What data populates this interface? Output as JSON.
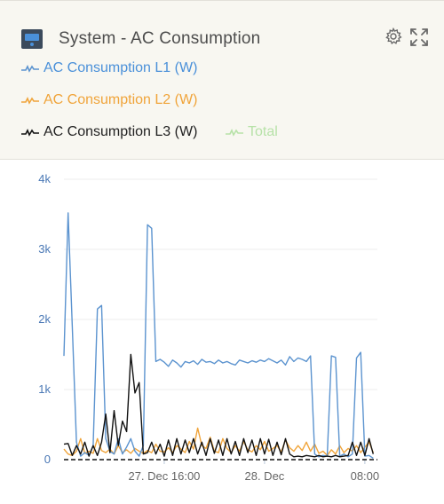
{
  "panel": {
    "title": "System - AC Consumption",
    "settings_icon": "gear-icon",
    "expand_icon": "expand-icon",
    "device_icon": "inverter-icon"
  },
  "chart_data": {
    "type": "line",
    "title": "System - AC Consumption",
    "xlabel": "",
    "ylabel": "",
    "ylim": [
      0,
      4000
    ],
    "yticks": [
      0,
      1000,
      2000,
      3000,
      4000
    ],
    "ytick_labels": [
      "0",
      "1k",
      "2k",
      "3k",
      "4k"
    ],
    "xlim": [
      "2023-12-27T08:00",
      "2023-12-28T09:00"
    ],
    "xtick_labels": [
      {
        "label": "27. Dec 16:00",
        "t": "2023-12-27T16:00"
      },
      {
        "label": "28. Dec",
        "t": "2023-12-28T00:00"
      },
      {
        "label": "08:00",
        "t": "2023-12-28T08:00"
      }
    ],
    "grid": true,
    "legend_position": "top-left",
    "series": [
      {
        "name": "AC Consumption L1 (W)",
        "color": "#5b93cf",
        "points": [
          [
            "2023-12-27T08:00",
            1480
          ],
          [
            "2023-12-27T08:20",
            3520
          ],
          [
            "2023-12-27T08:40",
            1900
          ],
          [
            "2023-12-27T09:00",
            250
          ],
          [
            "2023-12-27T09:20",
            50
          ],
          [
            "2023-12-27T09:40",
            100
          ],
          [
            "2023-12-27T10:00",
            60
          ],
          [
            "2023-12-27T10:20",
            200
          ],
          [
            "2023-12-27T10:40",
            2150
          ],
          [
            "2023-12-27T11:00",
            2200
          ],
          [
            "2023-12-27T11:20",
            300
          ],
          [
            "2023-12-27T11:40",
            120
          ],
          [
            "2023-12-27T12:00",
            80
          ],
          [
            "2023-12-27T12:20",
            300
          ],
          [
            "2023-12-27T12:40",
            80
          ],
          [
            "2023-12-27T13:00",
            180
          ],
          [
            "2023-12-27T13:20",
            300
          ],
          [
            "2023-12-27T13:40",
            120
          ],
          [
            "2023-12-27T14:00",
            50
          ],
          [
            "2023-12-27T14:20",
            200
          ],
          [
            "2023-12-27T14:40",
            3350
          ],
          [
            "2023-12-27T15:00",
            3300
          ],
          [
            "2023-12-27T15:20",
            1400
          ],
          [
            "2023-12-27T15:40",
            1430
          ],
          [
            "2023-12-27T16:00",
            1390
          ],
          [
            "2023-12-27T16:20",
            1330
          ],
          [
            "2023-12-27T16:40",
            1420
          ],
          [
            "2023-12-27T17:00",
            1380
          ],
          [
            "2023-12-27T17:20",
            1320
          ],
          [
            "2023-12-27T17:40",
            1400
          ],
          [
            "2023-12-27T18:00",
            1380
          ],
          [
            "2023-12-27T18:20",
            1410
          ],
          [
            "2023-12-27T18:40",
            1360
          ],
          [
            "2023-12-27T19:00",
            1430
          ],
          [
            "2023-12-27T19:20",
            1390
          ],
          [
            "2023-12-27T19:40",
            1400
          ],
          [
            "2023-12-27T20:00",
            1370
          ],
          [
            "2023-12-27T20:20",
            1420
          ],
          [
            "2023-12-27T20:40",
            1380
          ],
          [
            "2023-12-27T21:00",
            1400
          ],
          [
            "2023-12-27T21:20",
            1370
          ],
          [
            "2023-12-27T21:40",
            1350
          ],
          [
            "2023-12-27T22:00",
            1420
          ],
          [
            "2023-12-27T22:20",
            1400
          ],
          [
            "2023-12-27T22:40",
            1380
          ],
          [
            "2023-12-27T23:00",
            1410
          ],
          [
            "2023-12-27T23:20",
            1390
          ],
          [
            "2023-12-27T23:40",
            1420
          ],
          [
            "2023-12-28T00:00",
            1400
          ],
          [
            "2023-12-28T00:20",
            1440
          ],
          [
            "2023-12-28T00:40",
            1410
          ],
          [
            "2023-12-28T01:00",
            1380
          ],
          [
            "2023-12-28T01:20",
            1420
          ],
          [
            "2023-12-28T01:40",
            1350
          ],
          [
            "2023-12-28T02:00",
            1470
          ],
          [
            "2023-12-28T02:20",
            1400
          ],
          [
            "2023-12-28T02:40",
            1450
          ],
          [
            "2023-12-28T03:00",
            1430
          ],
          [
            "2023-12-28T03:20",
            1400
          ],
          [
            "2023-12-28T03:40",
            1480
          ],
          [
            "2023-12-28T04:00",
            80
          ],
          [
            "2023-12-28T04:20",
            40
          ],
          [
            "2023-12-28T04:40",
            60
          ],
          [
            "2023-12-28T05:00",
            50
          ],
          [
            "2023-12-28T05:20",
            1480
          ],
          [
            "2023-12-28T05:40",
            1460
          ],
          [
            "2023-12-28T06:00",
            50
          ],
          [
            "2023-12-28T06:20",
            80
          ],
          [
            "2023-12-28T06:40",
            40
          ],
          [
            "2023-12-28T07:00",
            80
          ],
          [
            "2023-12-28T07:20",
            1450
          ],
          [
            "2023-12-28T07:40",
            1530
          ],
          [
            "2023-12-28T08:00",
            50
          ],
          [
            "2023-12-28T08:20",
            60
          ],
          [
            "2023-12-28T08:40",
            20
          ]
        ]
      },
      {
        "name": "AC Consumption L2 (W)",
        "color": "#f0a43a",
        "points": [
          [
            "2023-12-27T08:00",
            150
          ],
          [
            "2023-12-27T08:20",
            80
          ],
          [
            "2023-12-27T08:40",
            60
          ],
          [
            "2023-12-27T09:00",
            120
          ],
          [
            "2023-12-27T09:20",
            300
          ],
          [
            "2023-12-27T09:40",
            90
          ],
          [
            "2023-12-27T10:00",
            120
          ],
          [
            "2023-12-27T10:20",
            90
          ],
          [
            "2023-12-27T10:40",
            300
          ],
          [
            "2023-12-27T11:00",
            130
          ],
          [
            "2023-12-27T11:20",
            100
          ],
          [
            "2023-12-27T11:40",
            150
          ],
          [
            "2023-12-27T12:00",
            80
          ],
          [
            "2023-12-27T12:20",
            200
          ],
          [
            "2023-12-27T12:40",
            100
          ],
          [
            "2023-12-27T13:00",
            140
          ],
          [
            "2023-12-27T13:20",
            90
          ],
          [
            "2023-12-27T13:40",
            160
          ],
          [
            "2023-12-27T14:00",
            120
          ],
          [
            "2023-12-27T14:20",
            90
          ],
          [
            "2023-12-27T14:40",
            130
          ],
          [
            "2023-12-27T15:00",
            100
          ],
          [
            "2023-12-27T15:20",
            220
          ],
          [
            "2023-12-27T15:40",
            120
          ],
          [
            "2023-12-27T16:00",
            110
          ],
          [
            "2023-12-27T16:20",
            170
          ],
          [
            "2023-12-27T16:40",
            100
          ],
          [
            "2023-12-27T17:00",
            200
          ],
          [
            "2023-12-27T17:20",
            150
          ],
          [
            "2023-12-27T17:40",
            100
          ],
          [
            "2023-12-27T18:00",
            260
          ],
          [
            "2023-12-27T18:20",
            150
          ],
          [
            "2023-12-27T18:40",
            450
          ],
          [
            "2023-12-27T19:00",
            200
          ],
          [
            "2023-12-27T19:20",
            160
          ],
          [
            "2023-12-27T19:40",
            320
          ],
          [
            "2023-12-27T20:00",
            120
          ],
          [
            "2023-12-27T20:20",
            100
          ],
          [
            "2023-12-27T20:40",
            300
          ],
          [
            "2023-12-27T21:00",
            160
          ],
          [
            "2023-12-27T21:20",
            100
          ],
          [
            "2023-12-27T21:40",
            200
          ],
          [
            "2023-12-27T22:00",
            120
          ],
          [
            "2023-12-27T22:20",
            260
          ],
          [
            "2023-12-27T22:40",
            140
          ],
          [
            "2023-12-27T23:00",
            110
          ],
          [
            "2023-12-27T23:20",
            200
          ],
          [
            "2023-12-27T23:40",
            140
          ],
          [
            "2023-12-28T00:00",
            260
          ],
          [
            "2023-12-28T00:20",
            120
          ],
          [
            "2023-12-28T00:40",
            160
          ],
          [
            "2023-12-28T01:00",
            200
          ],
          [
            "2023-12-28T01:20",
            110
          ],
          [
            "2023-12-28T01:40",
            280
          ],
          [
            "2023-12-28T02:00",
            170
          ],
          [
            "2023-12-28T02:20",
            120
          ],
          [
            "2023-12-28T02:40",
            200
          ],
          [
            "2023-12-28T03:00",
            130
          ],
          [
            "2023-12-28T03:20",
            250
          ],
          [
            "2023-12-28T03:40",
            120
          ],
          [
            "2023-12-28T04:00",
            220
          ],
          [
            "2023-12-28T04:20",
            90
          ],
          [
            "2023-12-28T04:40",
            120
          ],
          [
            "2023-12-28T05:00",
            60
          ],
          [
            "2023-12-28T05:20",
            140
          ],
          [
            "2023-12-28T05:40",
            80
          ],
          [
            "2023-12-28T06:00",
            200
          ],
          [
            "2023-12-28T06:20",
            100
          ],
          [
            "2023-12-28T06:40",
            160
          ],
          [
            "2023-12-28T07:00",
            120
          ],
          [
            "2023-12-28T07:20",
            200
          ],
          [
            "2023-12-28T07:40",
            100
          ],
          [
            "2023-12-28T08:00",
            180
          ],
          [
            "2023-12-28T08:20",
            250
          ],
          [
            "2023-12-28T08:40",
            100
          ]
        ]
      },
      {
        "name": "AC Consumption L3 (W)",
        "color": "#111111",
        "points": [
          [
            "2023-12-27T08:00",
            220
          ],
          [
            "2023-12-27T08:20",
            230
          ],
          [
            "2023-12-27T08:40",
            60
          ],
          [
            "2023-12-27T09:00",
            200
          ],
          [
            "2023-12-27T09:20",
            80
          ],
          [
            "2023-12-27T09:40",
            250
          ],
          [
            "2023-12-27T10:00",
            50
          ],
          [
            "2023-12-27T10:20",
            200
          ],
          [
            "2023-12-27T10:40",
            60
          ],
          [
            "2023-12-27T11:00",
            250
          ],
          [
            "2023-12-27T11:20",
            650
          ],
          [
            "2023-12-27T11:40",
            100
          ],
          [
            "2023-12-27T12:00",
            700
          ],
          [
            "2023-12-27T12:20",
            200
          ],
          [
            "2023-12-27T12:40",
            550
          ],
          [
            "2023-12-27T13:00",
            400
          ],
          [
            "2023-12-27T13:20",
            1500
          ],
          [
            "2023-12-27T13:40",
            950
          ],
          [
            "2023-12-27T14:00",
            1100
          ],
          [
            "2023-12-27T14:20",
            80
          ],
          [
            "2023-12-27T14:40",
            100
          ],
          [
            "2023-12-27T15:00",
            250
          ],
          [
            "2023-12-27T15:20",
            80
          ],
          [
            "2023-12-27T15:40",
            220
          ],
          [
            "2023-12-27T16:00",
            50
          ],
          [
            "2023-12-27T16:20",
            280
          ],
          [
            "2023-12-27T16:40",
            60
          ],
          [
            "2023-12-27T17:00",
            300
          ],
          [
            "2023-12-27T17:20",
            80
          ],
          [
            "2023-12-27T17:40",
            280
          ],
          [
            "2023-12-27T18:00",
            100
          ],
          [
            "2023-12-27T18:20",
            300
          ],
          [
            "2023-12-27T18:40",
            80
          ],
          [
            "2023-12-27T19:00",
            250
          ],
          [
            "2023-12-27T19:20",
            60
          ],
          [
            "2023-12-27T19:40",
            300
          ],
          [
            "2023-12-27T20:00",
            90
          ],
          [
            "2023-12-27T20:20",
            280
          ],
          [
            "2023-12-27T20:40",
            60
          ],
          [
            "2023-12-27T21:00",
            300
          ],
          [
            "2023-12-27T21:20",
            80
          ],
          [
            "2023-12-27T21:40",
            260
          ],
          [
            "2023-12-27T22:00",
            60
          ],
          [
            "2023-12-27T22:20",
            300
          ],
          [
            "2023-12-27T22:40",
            100
          ],
          [
            "2023-12-27T23:00",
            280
          ],
          [
            "2023-12-27T23:20",
            60
          ],
          [
            "2023-12-27T23:40",
            300
          ],
          [
            "2023-12-28T00:00",
            80
          ],
          [
            "2023-12-28T00:20",
            290
          ],
          [
            "2023-12-28T00:40",
            60
          ],
          [
            "2023-12-28T01:00",
            250
          ],
          [
            "2023-12-28T01:20",
            70
          ],
          [
            "2023-12-28T01:40",
            300
          ],
          [
            "2023-12-28T02:00",
            80
          ],
          [
            "2023-12-28T02:20",
            40
          ],
          [
            "2023-12-28T02:40",
            50
          ],
          [
            "2023-12-28T03:00",
            40
          ],
          [
            "2023-12-28T03:20",
            60
          ],
          [
            "2023-12-28T03:40",
            50
          ],
          [
            "2023-12-28T04:00",
            40
          ],
          [
            "2023-12-28T04:20",
            60
          ],
          [
            "2023-12-28T04:40",
            40
          ],
          [
            "2023-12-28T05:00",
            50
          ],
          [
            "2023-12-28T05:20",
            40
          ],
          [
            "2023-12-28T05:40",
            60
          ],
          [
            "2023-12-28T06:00",
            40
          ],
          [
            "2023-12-28T06:20",
            50
          ],
          [
            "2023-12-28T06:40",
            60
          ],
          [
            "2023-12-28T07:00",
            250
          ],
          [
            "2023-12-28T07:20",
            60
          ],
          [
            "2023-12-28T07:40",
            250
          ],
          [
            "2023-12-28T08:00",
            60
          ],
          [
            "2023-12-28T08:20",
            300
          ],
          [
            "2023-12-28T08:40",
            80
          ]
        ]
      },
      {
        "name": "Total",
        "color": "#b7e2a8",
        "hidden": true,
        "points": []
      }
    ]
  }
}
